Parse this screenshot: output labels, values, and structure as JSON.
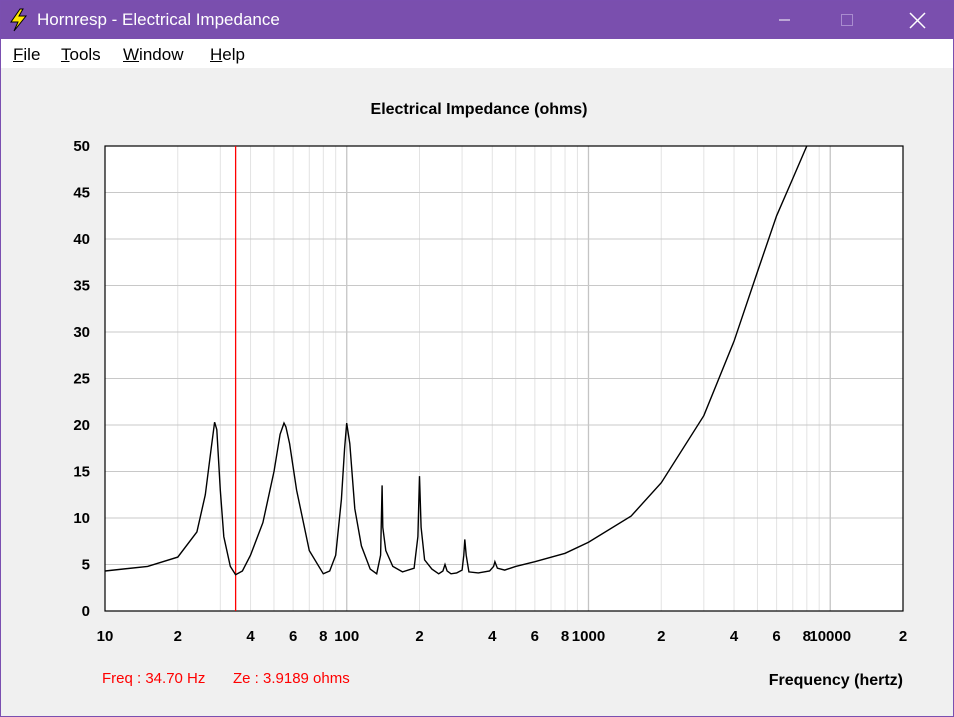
{
  "window": {
    "title": "Hornresp - Electrical Impedance",
    "accent_color": "#7a4fae",
    "controls": [
      "minimize-icon",
      "maximize-icon",
      "close-icon"
    ]
  },
  "menu": {
    "items": [
      {
        "accel": "F",
        "rest": "ile"
      },
      {
        "accel": "T",
        "rest": "ools"
      },
      {
        "accel": "W",
        "rest": "indow"
      },
      {
        "accel": "H",
        "rest": "elp"
      }
    ]
  },
  "readout": {
    "freq": "Freq : 34.70 Hz",
    "ze": "Ze : 3.9189 ohms",
    "color": "#ff0000"
  },
  "chart_data": {
    "type": "line",
    "title": "Electrical Impedance (ohms)",
    "xlabel": "Frequency (hertz)",
    "ylabel": "",
    "xscale": "log",
    "xlim": [
      10,
      20000
    ],
    "ylim": [
      0,
      50
    ],
    "grid": true,
    "y_ticks": [
      0,
      5,
      10,
      15,
      20,
      25,
      30,
      35,
      40,
      45,
      50
    ],
    "y_tick_labels": [
      "0",
      "5",
      "10",
      "15",
      "20",
      "25",
      "30",
      "35",
      "40",
      "45",
      "50"
    ],
    "x_ticks": [
      10,
      20,
      40,
      60,
      80,
      100,
      200,
      400,
      600,
      800,
      1000,
      2000,
      4000,
      6000,
      8000,
      10000,
      20000
    ],
    "x_tick_labels": [
      "10",
      "2",
      "4",
      "6",
      "8",
      "100",
      "2",
      "4",
      "6",
      "8",
      "1000",
      "2",
      "4",
      "6",
      "8",
      "10000",
      "2"
    ],
    "cursor": {
      "x": 34.7,
      "color": "#ff0000"
    },
    "series": [
      {
        "name": "Ze",
        "color": "#000000",
        "x": [
          10,
          15,
          20,
          24,
          26,
          27.5,
          28.4,
          29,
          30,
          31,
          33,
          34.7,
          37,
          40,
          45,
          50,
          53,
          55,
          56,
          58,
          62,
          70,
          80,
          85,
          90,
          95,
          98,
          100,
          103,
          108,
          115,
          125,
          133,
          138,
          140,
          141,
          145,
          155,
          170,
          190,
          197,
          200,
          203,
          210,
          225,
          240,
          250,
          255,
          260,
          270,
          285,
          300,
          305,
          308,
          312,
          320,
          350,
          390,
          405,
          410,
          420,
          450,
          500,
          600,
          800,
          1000,
          1500,
          2000,
          3000,
          4000,
          5000,
          6000,
          7000,
          8000
        ],
        "values": [
          4.3,
          4.8,
          5.8,
          8.5,
          12.5,
          17.5,
          20.3,
          19.5,
          13.0,
          8.0,
          4.8,
          3.9,
          4.3,
          6.0,
          9.5,
          15.0,
          19.0,
          20.2,
          19.8,
          18.0,
          13.0,
          6.5,
          4.0,
          4.3,
          6.0,
          12.0,
          17.5,
          20.2,
          18.0,
          11.0,
          7.0,
          4.5,
          4.0,
          6.0,
          13.5,
          9.0,
          6.5,
          4.8,
          4.2,
          4.6,
          8.0,
          14.5,
          9.0,
          5.5,
          4.5,
          4.0,
          4.3,
          5.0,
          4.3,
          4.0,
          4.1,
          4.4,
          6.0,
          7.7,
          6.0,
          4.2,
          4.1,
          4.3,
          4.8,
          5.3,
          4.6,
          4.4,
          4.8,
          5.3,
          6.2,
          7.4,
          10.2,
          13.8,
          21.0,
          29.0,
          36.5,
          42.5,
          46.5,
          50.0
        ]
      }
    ]
  }
}
